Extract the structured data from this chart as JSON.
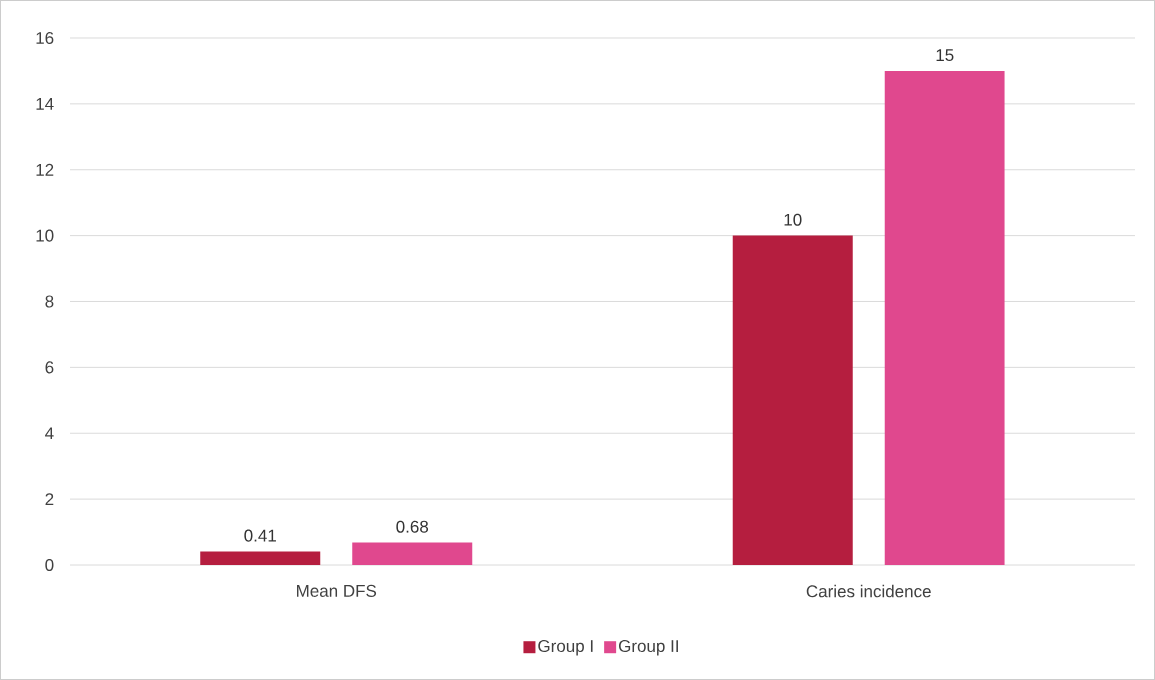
{
  "chart_data": {
    "type": "bar",
    "categories": [
      "Mean DFS",
      "Caries incidence"
    ],
    "series": [
      {
        "name": "Group I",
        "color": "#b51e3f",
        "values": [
          0.41,
          10
        ]
      },
      {
        "name": "Group II",
        "color": "#e0488e",
        "values": [
          0.68,
          15
        ]
      }
    ],
    "ylim": [
      0,
      16
    ],
    "yticks": [
      0,
      2,
      4,
      6,
      8,
      10,
      12,
      14,
      16
    ],
    "grid": "y",
    "legend": "bottom",
    "data_labels": true
  }
}
